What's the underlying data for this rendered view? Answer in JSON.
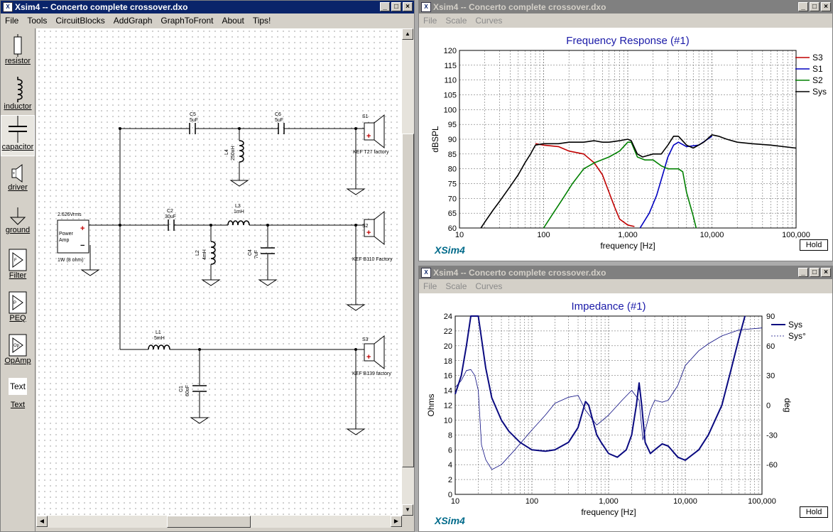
{
  "left_window": {
    "title": "Xsim4 -- Concerto complete crossover.dxo",
    "menu": [
      "File",
      "Tools",
      "CircuitBlocks",
      "AddGraph",
      "GraphToFront",
      "About",
      "Tips!"
    ],
    "palette": [
      "resistor",
      "inductor",
      "capacitor",
      "driver",
      "ground",
      "Filter",
      "PEQ",
      "OpAmp",
      "Text"
    ],
    "text_tool_glyph": "Text",
    "schematic": {
      "source_label": "2.626Vrms",
      "source_name_1": "Power",
      "source_name_2": "Amp",
      "source_plus": "+",
      "source_minus": "−",
      "source_imp": "1W (8 ohm)",
      "C5_name": "C5",
      "C5_val": "5uF",
      "C6_name": "C6",
      "C6_val": "5uF",
      "L4_name": "L4",
      "L4_val": "250uH",
      "S1_name": "S1",
      "S1_model": "KEF T27 factory",
      "C2_name": "C2",
      "C2_val": "30uF",
      "L3_name": "L3",
      "L3_val": "1mH",
      "L2_name": "L2",
      "L2_val": "4mH",
      "C4_name": "C4",
      "C4_val": "7uF",
      "S2_name": "S2",
      "S2_model": "KEF B110 Factory",
      "L1_name": "L1",
      "L1_val": "5mH",
      "C1_name": "C1",
      "C1_val": "60uF",
      "S3_name": "S3",
      "S3_model": "KEF B139 factory"
    }
  },
  "fr_window": {
    "title": "Xsim4 -- Concerto complete crossover.dxo",
    "menu": [
      "File",
      "Scale",
      "Curves"
    ],
    "brand": "XSim4",
    "hold": "Hold"
  },
  "imp_window": {
    "title": "Xsim4 -- Concerto complete crossover.dxo",
    "menu": [
      "File",
      "Scale",
      "Curves"
    ],
    "brand": "XSim4",
    "hold": "Hold"
  },
  "chart_data": [
    {
      "type": "line",
      "title": "Frequency Response (#1)",
      "xlabel": "frequency [Hz]",
      "ylabel": "dBSPL",
      "x_scale": "log",
      "xlim": [
        10,
        100000
      ],
      "ylim": [
        60,
        120
      ],
      "x_ticks": [
        "10",
        "100",
        "1,000",
        "10,000",
        "100,000"
      ],
      "y_ticks": [
        "60",
        "65",
        "70",
        "75",
        "80",
        "85",
        "90",
        "95",
        "100",
        "105",
        "110",
        "115",
        "120"
      ],
      "grid": true,
      "legend": "right",
      "series": [
        {
          "name": "S3",
          "color": "#c00000",
          "points": [
            [
              80,
              88.5
            ],
            [
              100,
              88
            ],
            [
              150,
              87.5
            ],
            [
              200,
              86
            ],
            [
              300,
              85
            ],
            [
              400,
              82
            ],
            [
              500,
              78
            ],
            [
              600,
              72
            ],
            [
              700,
              67
            ],
            [
              800,
              63
            ],
            [
              1000,
              61
            ],
            [
              1200,
              60.5
            ]
          ]
        },
        {
          "name": "S1",
          "color": "#0000c0",
          "points": [
            [
              1400,
              60
            ],
            [
              1800,
              65
            ],
            [
              2200,
              71
            ],
            [
              2600,
              78
            ],
            [
              3000,
              84
            ],
            [
              3500,
              88
            ],
            [
              4000,
              89
            ],
            [
              5000,
              87.5
            ],
            [
              7000,
              88
            ],
            [
              10000,
              91
            ]
          ]
        },
        {
          "name": "S2",
          "color": "#008000",
          "points": [
            [
              100,
              60
            ],
            [
              130,
              65
            ],
            [
              170,
              70
            ],
            [
              220,
              75
            ],
            [
              300,
              80
            ],
            [
              400,
              82
            ],
            [
              600,
              84
            ],
            [
              800,
              86
            ],
            [
              1000,
              89
            ],
            [
              1100,
              89
            ],
            [
              1300,
              84
            ],
            [
              1600,
              83
            ],
            [
              2000,
              83
            ],
            [
              2500,
              81
            ],
            [
              3000,
              80
            ],
            [
              4000,
              80
            ],
            [
              4500,
              79
            ],
            [
              5000,
              72
            ],
            [
              6000,
              64
            ],
            [
              6500,
              60
            ]
          ]
        },
        {
          "name": "Sys",
          "color": "#000000",
          "points": [
            [
              18,
              60
            ],
            [
              20,
              62
            ],
            [
              25,
              66
            ],
            [
              30,
              69
            ],
            [
              40,
              74
            ],
            [
              50,
              78
            ],
            [
              60,
              82
            ],
            [
              70,
              85
            ],
            [
              80,
              88
            ],
            [
              100,
              88.5
            ],
            [
              150,
              88.5
            ],
            [
              200,
              89
            ],
            [
              300,
              89
            ],
            [
              400,
              89.5
            ],
            [
              500,
              89
            ],
            [
              600,
              89
            ],
            [
              800,
              89.5
            ],
            [
              1000,
              90
            ],
            [
              1100,
              89.5
            ],
            [
              1300,
              85
            ],
            [
              1500,
              84
            ],
            [
              2000,
              85
            ],
            [
              2500,
              85
            ],
            [
              3000,
              88
            ],
            [
              3500,
              91
            ],
            [
              4000,
              91
            ],
            [
              5000,
              88
            ],
            [
              6000,
              87
            ],
            [
              8000,
              89
            ],
            [
              10000,
              91.5
            ],
            [
              12000,
              91
            ],
            [
              15000,
              90
            ],
            [
              20000,
              89
            ],
            [
              30000,
              88.5
            ],
            [
              50000,
              88
            ],
            [
              100000,
              87
            ]
          ]
        }
      ]
    },
    {
      "type": "line",
      "title": "Impedance (#1)",
      "xlabel": "frequency [Hz]",
      "ylabel": "Ohms",
      "y2label": "deg",
      "x_scale": "log",
      "xlim": [
        10,
        100000
      ],
      "ylim": [
        0,
        24
      ],
      "y2lim": [
        -90,
        90
      ],
      "x_ticks": [
        "10",
        "100",
        "1,000",
        "10,000",
        "100,000"
      ],
      "y_ticks": [
        "0",
        "2",
        "4",
        "6",
        "8",
        "10",
        "12",
        "14",
        "16",
        "18",
        "20",
        "22",
        "24"
      ],
      "y2_ticks": [
        "-60",
        "-30",
        "0",
        "30",
        "60",
        "90"
      ],
      "grid": true,
      "legend": "right",
      "series": [
        {
          "name": "Sys",
          "axis": "left",
          "color": "#0a0a80",
          "points": [
            [
              10,
              13.5
            ],
            [
              12,
              16
            ],
            [
              14,
              20
            ],
            [
              16,
              24
            ],
            [
              20,
              24
            ],
            [
              25,
              17
            ],
            [
              30,
              13
            ],
            [
              40,
              10
            ],
            [
              50,
              8.5
            ],
            [
              70,
              7
            ],
            [
              100,
              6
            ],
            [
              150,
              5.8
            ],
            [
              200,
              6
            ],
            [
              300,
              7
            ],
            [
              400,
              9
            ],
            [
              500,
              12.5
            ],
            [
              550,
              12
            ],
            [
              700,
              8
            ],
            [
              800,
              7
            ],
            [
              1000,
              5.5
            ],
            [
              1300,
              5
            ],
            [
              1700,
              6
            ],
            [
              2000,
              8
            ],
            [
              2300,
              12
            ],
            [
              2500,
              15
            ],
            [
              2700,
              12
            ],
            [
              3000,
              7
            ],
            [
              3500,
              5.5
            ],
            [
              4000,
              6
            ],
            [
              5000,
              6.8
            ],
            [
              6000,
              6.5
            ],
            [
              8000,
              5
            ],
            [
              10000,
              4.6
            ],
            [
              15000,
              6
            ],
            [
              20000,
              8
            ],
            [
              30000,
              12
            ],
            [
              40000,
              17
            ],
            [
              50000,
              21
            ],
            [
              60000,
              24
            ]
          ]
        },
        {
          "name": "Sys°",
          "axis": "right",
          "color": "#0a0a80",
          "points": [
            [
              10,
              18
            ],
            [
              12,
              25
            ],
            [
              14,
              35
            ],
            [
              16,
              36
            ],
            [
              18,
              30
            ],
            [
              20,
              15
            ],
            [
              22,
              -40
            ],
            [
              25,
              -55
            ],
            [
              30,
              -65
            ],
            [
              40,
              -60
            ],
            [
              60,
              -45
            ],
            [
              100,
              -25
            ],
            [
              150,
              -10
            ],
            [
              200,
              2
            ],
            [
              300,
              8
            ],
            [
              400,
              10
            ],
            [
              500,
              -5
            ],
            [
              700,
              -20
            ],
            [
              1000,
              -10
            ],
            [
              1500,
              5
            ],
            [
              2000,
              15
            ],
            [
              2500,
              5
            ],
            [
              2800,
              -35
            ],
            [
              3500,
              -5
            ],
            [
              4000,
              5
            ],
            [
              5000,
              3
            ],
            [
              6000,
              5
            ],
            [
              8000,
              20
            ],
            [
              10000,
              40
            ],
            [
              15000,
              55
            ],
            [
              20000,
              62
            ],
            [
              30000,
              70
            ],
            [
              50000,
              76
            ],
            [
              100000,
              78
            ]
          ]
        }
      ]
    }
  ]
}
